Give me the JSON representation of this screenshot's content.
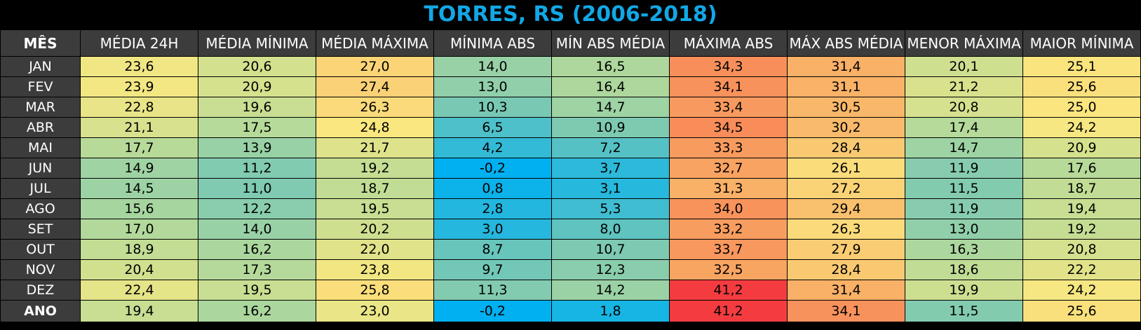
{
  "title": "TORRES, RS (2006-2018)",
  "chart_data": {
    "type": "table",
    "title": "TORRES, RS (2006-2018)",
    "columns": [
      "MÊS",
      "MÉDIA 24H",
      "MÉDIA MÍNIMA",
      "MÉDIA MÁXIMA",
      "MÍNIMA ABS",
      "MÍN ABS MÉDIA",
      "MÁXIMA ABS",
      "MÁX ABS MÉDIA",
      "MENOR MÁXIMA",
      "MAIOR MÍNIMA"
    ],
    "rows": [
      {
        "month": "JAN",
        "values": [
          "23,6",
          "20,6",
          "27,0",
          "14,0",
          "16,5",
          "34,3",
          "31,4",
          "20,1",
          "25,1"
        ]
      },
      {
        "month": "FEV",
        "values": [
          "23,9",
          "20,9",
          "27,4",
          "13,0",
          "16,4",
          "34,1",
          "31,1",
          "21,2",
          "25,6"
        ]
      },
      {
        "month": "MAR",
        "values": [
          "22,8",
          "19,6",
          "26,3",
          "10,3",
          "14,7",
          "33,4",
          "30,5",
          "20,8",
          "25,0"
        ]
      },
      {
        "month": "ABR",
        "values": [
          "21,1",
          "17,5",
          "24,8",
          "6,5",
          "10,9",
          "34,5",
          "30,2",
          "17,4",
          "24,2"
        ]
      },
      {
        "month": "MAI",
        "values": [
          "17,7",
          "13,9",
          "21,7",
          "4,2",
          "7,2",
          "33,3",
          "28,4",
          "14,7",
          "20,9"
        ]
      },
      {
        "month": "JUN",
        "values": [
          "14,9",
          "11,2",
          "19,2",
          "-0,2",
          "3,7",
          "32,7",
          "26,1",
          "11,9",
          "17,6"
        ]
      },
      {
        "month": "JUL",
        "values": [
          "14,5",
          "11,0",
          "18,7",
          "0,8",
          "3,1",
          "31,3",
          "27,2",
          "11,5",
          "18,7"
        ]
      },
      {
        "month": "AGO",
        "values": [
          "15,6",
          "12,2",
          "19,5",
          "2,8",
          "5,3",
          "34,0",
          "29,4",
          "11,9",
          "19,4"
        ]
      },
      {
        "month": "SET",
        "values": [
          "17,0",
          "14,0",
          "20,2",
          "3,0",
          "8,0",
          "33,2",
          "26,3",
          "13,0",
          "19,2"
        ]
      },
      {
        "month": "OUT",
        "values": [
          "18,9",
          "16,2",
          "22,0",
          "8,7",
          "10,7",
          "33,7",
          "27,9",
          "16,3",
          "20,8"
        ]
      },
      {
        "month": "NOV",
        "values": [
          "20,4",
          "17,3",
          "23,8",
          "9,7",
          "12,3",
          "32,5",
          "28,4",
          "18,6",
          "22,2"
        ]
      },
      {
        "month": "DEZ",
        "values": [
          "22,4",
          "19,5",
          "25,8",
          "11,3",
          "14,2",
          "41,2",
          "31,4",
          "19,9",
          "24,2"
        ]
      },
      {
        "month": "ANO",
        "values": [
          "19,4",
          "16,2",
          "23,0",
          "-0,2",
          "1,8",
          "41,2",
          "34,1",
          "11,5",
          "25,6"
        ]
      }
    ]
  }
}
